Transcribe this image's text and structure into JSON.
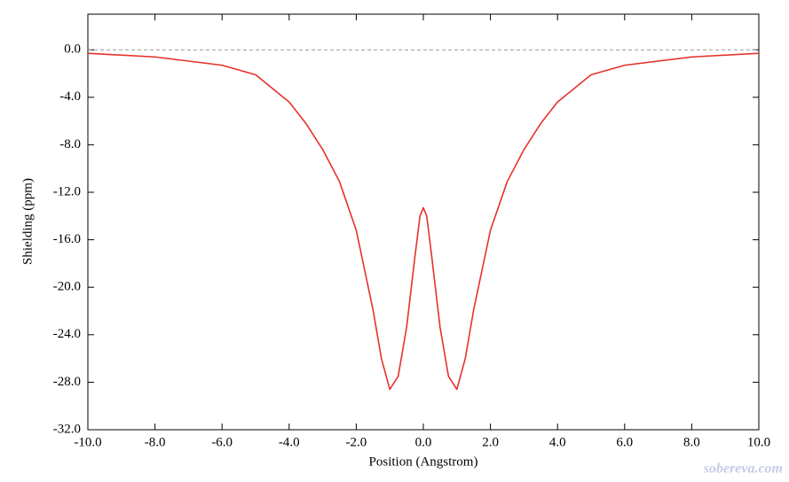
{
  "chart_data": {
    "type": "line",
    "x_label": "Position (Angstrom)",
    "y_label": "Shielding (ppm)",
    "watermark": "sobereva.com",
    "x": [
      -10,
      -8,
      -6,
      -5,
      -4,
      -3.5,
      -3,
      -2.5,
      -2,
      -1.5,
      -1.25,
      -1,
      -0.75,
      -0.5,
      -0.25,
      -0.1,
      0,
      0.1,
      0.25,
      0.5,
      0.75,
      1,
      1.25,
      1.5,
      2,
      2.5,
      3,
      3.5,
      4,
      5,
      6,
      8,
      10
    ],
    "series": [
      {
        "color": "#e8312a",
        "values": [
          -0.3,
          -0.6,
          -1.3,
          -2.1,
          -4.4,
          -6.2,
          -8.4,
          -11.1,
          -15.2,
          -21.9,
          -26,
          -28.6,
          -27.5,
          -23.4,
          -17.4,
          -14,
          -13.3,
          -14,
          -17.4,
          -23.4,
          -27.5,
          -28.6,
          -26,
          -21.9,
          -15.2,
          -11.1,
          -8.4,
          -6.2,
          -4.4,
          -2.1,
          -1.3,
          -0.6,
          -0.3
        ]
      }
    ],
    "reference_line": 0,
    "xlim": [
      -10,
      10
    ],
    "ylim": [
      -32,
      3
    ],
    "xticks": [
      {
        "value": -10,
        "label": "-10.0"
      },
      {
        "value": -8,
        "label": "-8.0"
      },
      {
        "value": -6,
        "label": "-6.0"
      },
      {
        "value": -4,
        "label": "-4.0"
      },
      {
        "value": -2,
        "label": "-2.0"
      },
      {
        "value": 0,
        "label": "0.0"
      },
      {
        "value": 2,
        "label": "2.0"
      },
      {
        "value": 4,
        "label": "4.0"
      },
      {
        "value": 6,
        "label": "6.0"
      },
      {
        "value": 8,
        "label": "8.0"
      },
      {
        "value": 10,
        "label": "10.0"
      }
    ],
    "yticks": [
      {
        "value": 0,
        "label": "0.0"
      },
      {
        "value": -4,
        "label": "-4.0"
      },
      {
        "value": -8,
        "label": "-8.0"
      },
      {
        "value": -12,
        "label": "-12.0"
      },
      {
        "value": -16,
        "label": "-16.0"
      },
      {
        "value": -20,
        "label": "-20.0"
      },
      {
        "value": -24,
        "label": "-24.0"
      },
      {
        "value": -28,
        "label": "-28.0"
      },
      {
        "value": -32,
        "label": "-32.0"
      }
    ]
  }
}
